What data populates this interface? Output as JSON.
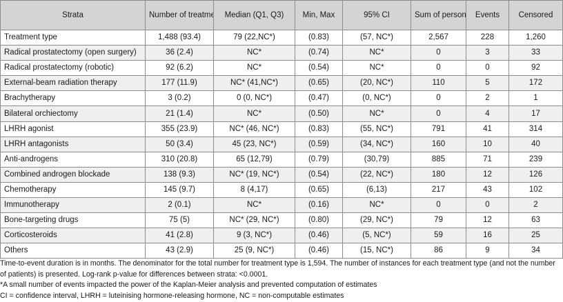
{
  "table": {
    "headers": [
      "Strata",
      "Number of treatments n (%)",
      "Median (Q1, Q3)",
      "Min, Max",
      "95% CI",
      "Sum of person time",
      "Events",
      "Censored"
    ],
    "rows": [
      [
        "Treatment type",
        "1,488 (93.4)",
        "79 (22,NC*)",
        "(0.83)",
        "(57, NC*)",
        "2,567",
        "228",
        "1,260"
      ],
      [
        "Radical prostatectomy (open surgery)",
        "36 (2.4)",
        "NC*",
        "(0.74)",
        "NC*",
        "0",
        "3",
        "33"
      ],
      [
        "Radical prostatectomy (robotic)",
        "92 (6.2)",
        "NC*",
        "(0.54)",
        "NC*",
        "0",
        "0",
        "92"
      ],
      [
        "External-beam radiation therapy",
        "177 (11.9)",
        "NC* (41,NC*)",
        "(0.65)",
        "(20, NC*)",
        "110",
        "5",
        "172"
      ],
      [
        "Brachytherapy",
        "3 (0.2)",
        "0 (0, NC*)",
        "(0.47)",
        "(0, NC*)",
        "0",
        "2",
        "1"
      ],
      [
        "Bilateral orchiectomy",
        "21 (1.4)",
        "NC*",
        "(0.50)",
        "NC*",
        "0",
        "4",
        "17"
      ],
      [
        "LHRH agonist",
        "355 (23.9)",
        "NC* (46, NC*)",
        "(0.83)",
        "(55, NC*)",
        "791",
        "41",
        "314"
      ],
      [
        "LHRH antagonists",
        "50 (3.4)",
        "45 (23, NC*)",
        "(0.59)",
        "(34, NC*)",
        "160",
        "10",
        "40"
      ],
      [
        "Anti-androgens",
        "310 (20.8)",
        "65 (12,79)",
        "(0.79)",
        "(30,79)",
        "885",
        "71",
        "239"
      ],
      [
        "Combined androgen blockade",
        "138 (9.3)",
        "NC* (19, NC*)",
        "(0.54)",
        "(22, NC*)",
        "180",
        "12",
        "126"
      ],
      [
        "Chemotherapy",
        "145 (9.7)",
        "8 (4,17)",
        "(0.65)",
        "(6,13)",
        "217",
        "43",
        "102"
      ],
      [
        "Immunotherapy",
        "2 (0.1)",
        "NC*",
        "(0.16)",
        "NC*",
        "0",
        "0",
        "2"
      ],
      [
        "Bone-targeting drugs",
        "75 (5)",
        "NC* (29, NC*)",
        "(0.80)",
        "(29, NC*)",
        "79",
        "12",
        "63"
      ],
      [
        "Corticosteroids",
        "41 (2.8)",
        "9 (3, NC*)",
        "(0.46)",
        "(5, NC*)",
        "59",
        "16",
        "25"
      ],
      [
        "Others",
        "43 (2.9)",
        "25 (9, NC*)",
        "(0.46)",
        "(15, NC*)",
        "86",
        "9",
        "34"
      ]
    ]
  },
  "footnotes": [
    "Time-to-event duration is in months. The denominator for the total number for treatment type is 1,594. The number of instances for each treatment type (and not the number of patients) is presented. Log-rank p-value for differences between strata: <0.0001.",
    "*A small number of events impacted the power of the Kaplan-Meier analysis and prevented computation of estimates",
    "CI = confidence interval, LHRH = luteinising hormone-releasing hormone, NC = non-computable estimates"
  ]
}
